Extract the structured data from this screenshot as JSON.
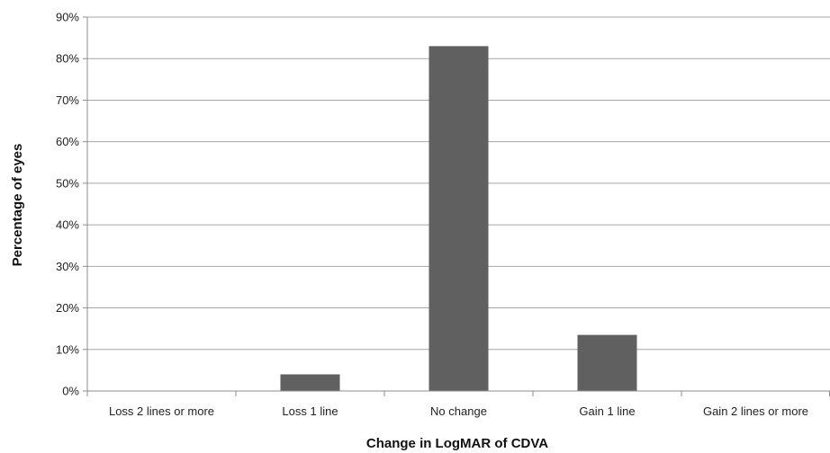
{
  "chart_data": {
    "type": "bar",
    "title": "",
    "xlabel": "Change in LogMAR of CDVA",
    "ylabel": "Percentage of eyes",
    "categories": [
      "Loss 2 lines or more",
      "Loss 1 line",
      "No change",
      "Gain 1 line",
      "Gain 2 lines or more"
    ],
    "series": [
      {
        "values": [
          0,
          4,
          83,
          13.5,
          0
        ]
      }
    ],
    "ylim": [
      0,
      90
    ],
    "yticks": [
      0,
      10,
      20,
      30,
      40,
      50,
      60,
      70,
      80,
      90
    ],
    "ytick_format": "percent",
    "grid": true,
    "legend": "none",
    "colors": {
      "bar": "#606060",
      "grid": "#a6a6a6",
      "axis": "#8c8c8c"
    }
  }
}
